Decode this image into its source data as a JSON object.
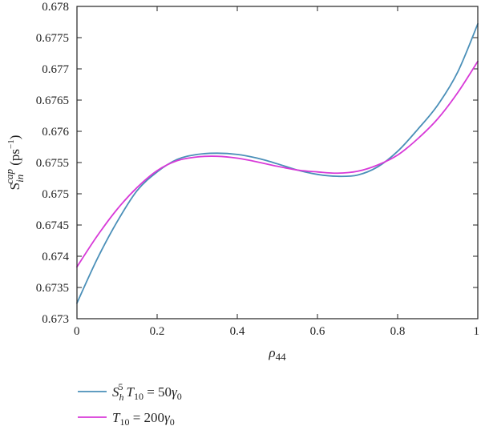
{
  "chart_data": {
    "type": "line",
    "xlabel": "ρ44",
    "ylabel": "S_in^cap (ps⁻¹)",
    "xlim": [
      0,
      1
    ],
    "ylim": [
      0.673,
      0.678
    ],
    "x_ticks": [
      "0",
      "0.2",
      "0.4",
      "0.6",
      "0.8",
      "1"
    ],
    "y_ticks": [
      "0.673",
      "0.6735",
      "0.674",
      "0.6745",
      "0.675",
      "0.6755",
      "0.676",
      "0.6765",
      "0.677",
      "0.6775",
      "0.678"
    ],
    "grid": false,
    "legend_position": "bottom-left, below plot",
    "series": [
      {
        "name": "S_h^5 T10 = 50γ0",
        "color": "#4a8fb8",
        "x": [
          0,
          0.05,
          0.1,
          0.15,
          0.2,
          0.25,
          0.3,
          0.35,
          0.4,
          0.45,
          0.5,
          0.55,
          0.6,
          0.65,
          0.7,
          0.75,
          0.8,
          0.85,
          0.9,
          0.95,
          1.0
        ],
        "y": [
          0.67325,
          0.67395,
          0.67455,
          0.67505,
          0.67535,
          0.67555,
          0.67563,
          0.67565,
          0.67563,
          0.67557,
          0.67548,
          0.67538,
          0.67531,
          0.67528,
          0.6753,
          0.67543,
          0.67568,
          0.67603,
          0.67642,
          0.67695,
          0.67772
        ]
      },
      {
        "name": "T10 = 200γ0",
        "color": "#d83ad8",
        "x": [
          0,
          0.05,
          0.1,
          0.15,
          0.2,
          0.25,
          0.3,
          0.35,
          0.4,
          0.45,
          0.5,
          0.55,
          0.6,
          0.65,
          0.7,
          0.75,
          0.8,
          0.85,
          0.9,
          0.95,
          1.0
        ],
        "y": [
          0.67383,
          0.67432,
          0.67475,
          0.6751,
          0.67537,
          0.67553,
          0.67559,
          0.6756,
          0.67557,
          0.67551,
          0.67544,
          0.67538,
          0.67535,
          0.67533,
          0.67536,
          0.67546,
          0.67562,
          0.67588,
          0.6762,
          0.67662,
          0.67712
        ]
      }
    ],
    "legend": [
      {
        "label": "S",
        "sub": "h",
        "sup": "5",
        "rest": " T",
        "rest_sub": "10",
        "tail": " = 50γ",
        "tail_sub": "0"
      },
      {
        "label": "T",
        "sub": "10",
        "tail": " = 200γ",
        "tail_sub": "0"
      }
    ]
  }
}
